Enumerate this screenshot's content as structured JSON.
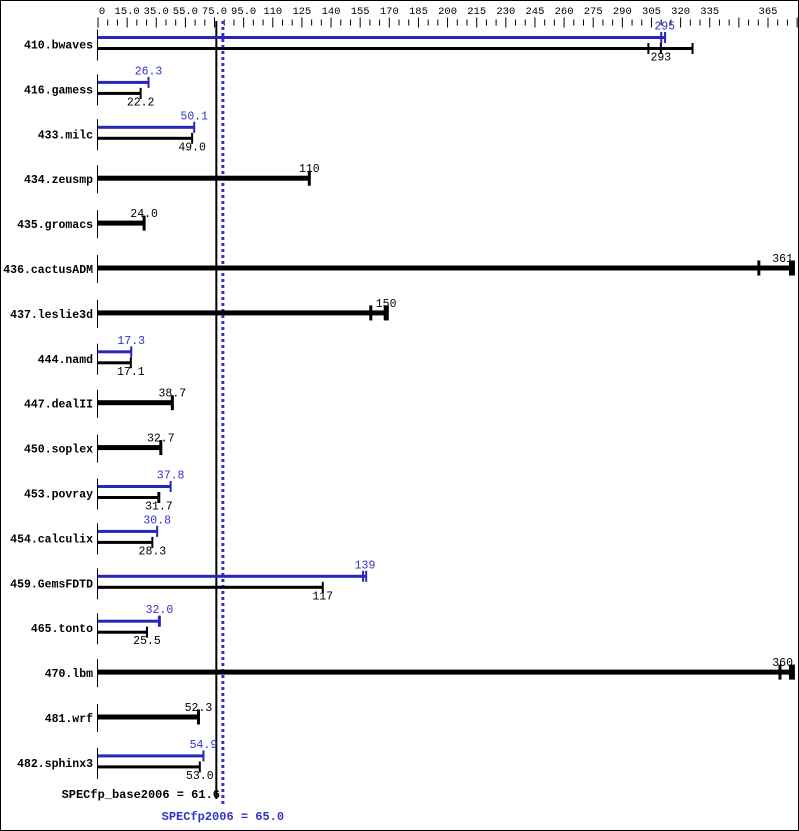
{
  "window": {
    "kind": "spec-benchmark-result-graph"
  },
  "colors": {
    "background": "#ffffff",
    "border": "#000000",
    "base_bar": "#000000",
    "peak_bar": "#2626b8",
    "peak_text": "#3333cc",
    "base_text": "#000000",
    "base_mean_line": "#000000",
    "peak_mean_line": "#3333cc"
  },
  "chart_data": {
    "type": "bar",
    "orientation": "horizontal",
    "title": "",
    "xlabel": "",
    "ylabel": "",
    "xlim": [
      0,
      365
    ],
    "grid": false,
    "legend_position": "none",
    "axis": {
      "tick_minor_step": 5,
      "tick_major_step": 15,
      "labels": [
        "0",
        "15.0",
        "35.0",
        "55.0",
        "75.0",
        "95.0",
        "110",
        "125",
        "140",
        "155",
        "170",
        "185",
        "200",
        "215",
        "230",
        "245",
        "260",
        "275",
        "290",
        "305",
        "320",
        "335",
        "365"
      ],
      "label_slots": [
        0,
        1,
        2,
        3,
        4,
        5,
        6,
        7,
        8,
        9,
        10,
        11,
        12,
        13,
        14,
        15,
        16,
        17,
        18,
        19,
        20,
        21,
        23
      ]
    },
    "mean_lines": [
      {
        "id": "base-mean",
        "label": "SPECfp_base2006 = 61.6",
        "value": 61.6,
        "style": "solid",
        "color": "#000000"
      },
      {
        "id": "peak-mean",
        "label": "SPECfp2006 = 65.0",
        "value": 65.0,
        "style": "dotted",
        "color": "#3333cc"
      }
    ],
    "series": [
      {
        "name": "peak",
        "color": "#2626b8"
      },
      {
        "name": "base",
        "color": "#000000"
      }
    ],
    "benchmarks": [
      {
        "name": "410.bwaves",
        "peak": {
          "label": "295",
          "value": 295,
          "marks": [
            293.2,
            295.2
          ]
        },
        "base": {
          "label": "293",
          "value": 293,
          "marks": [
            286.5,
            293,
            309.5
          ]
        }
      },
      {
        "name": "416.gamess",
        "peak": {
          "label": "26.3",
          "value": 26.3
        },
        "base": {
          "label": "22.2",
          "value": 22.2
        }
      },
      {
        "name": "433.milc",
        "peak": {
          "label": "50.1",
          "value": 50.1
        },
        "base": {
          "label": "49.0",
          "value": 49.0
        }
      },
      {
        "name": "434.zeusmp",
        "base": {
          "label": "110",
          "value": 110
        }
      },
      {
        "name": "435.gromacs",
        "base": {
          "label": "24.0",
          "value": 24.0
        }
      },
      {
        "name": "436.cactusADM",
        "base": {
          "label": "361",
          "value": 361,
          "marks": [
            344,
            360.5,
            362
          ]
        }
      },
      {
        "name": "437.leslie3d",
        "base": {
          "label": "150",
          "value": 150,
          "marks": [
            142,
            149.5,
            150.6
          ]
        }
      },
      {
        "name": "444.namd",
        "peak": {
          "label": "17.3",
          "value": 17.3
        },
        "base": {
          "label": "17.1",
          "value": 17.1
        }
      },
      {
        "name": "447.dealII",
        "base": {
          "label": "38.7",
          "value": 38.7
        }
      },
      {
        "name": "450.soplex",
        "base": {
          "label": "32.7",
          "value": 32.7
        }
      },
      {
        "name": "453.povray",
        "peak": {
          "label": "37.8",
          "value": 37.8
        },
        "base": {
          "label": "31.7",
          "value": 31.7,
          "marks": [
            31.4,
            31.9
          ]
        }
      },
      {
        "name": "454.calculix",
        "peak": {
          "label": "30.8",
          "value": 30.8
        },
        "base": {
          "label": "28.3",
          "value": 28.3
        }
      },
      {
        "name": "459.GemsFDTD",
        "peak": {
          "label": "139",
          "value": 139,
          "marks": [
            138,
            139.6
          ]
        },
        "base": {
          "label": "117",
          "value": 117
        }
      },
      {
        "name": "465.tonto",
        "peak": {
          "label": "32.0",
          "value": 32.0,
          "marks": [
            31.7,
            32.2
          ]
        },
        "base": {
          "label": "25.5",
          "value": 25.5
        }
      },
      {
        "name": "470.lbm",
        "base": {
          "label": "360",
          "value": 360,
          "marks": [
            355,
            360.5,
            362
          ]
        }
      },
      {
        "name": "481.wrf",
        "base": {
          "label": "52.3",
          "value": 52.3
        }
      },
      {
        "name": "482.sphinx3",
        "peak": {
          "label": "54.9",
          "value": 54.9
        },
        "base": {
          "label": "53.0",
          "value": 53.0
        }
      }
    ]
  }
}
